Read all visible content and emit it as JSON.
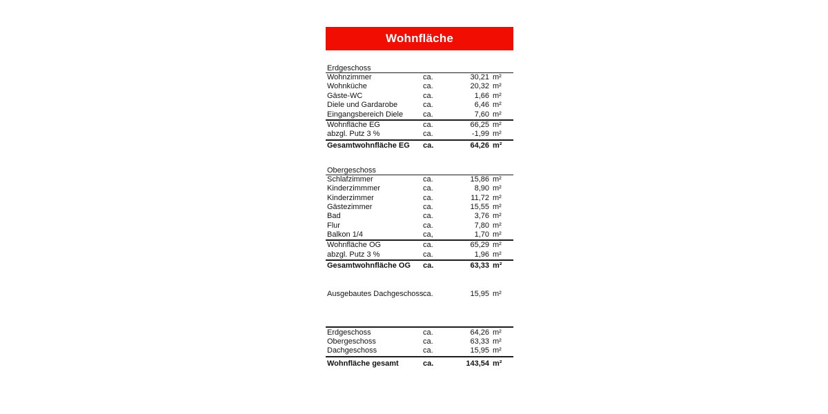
{
  "title": "Wohnfläche",
  "colors": {
    "banner_red": "#f20d02",
    "banner_text": "#ffffff",
    "text": "#111111",
    "rule": "#1c1c1c",
    "page_bg": "#ffffff"
  },
  "sections": {
    "eg": {
      "header": "Erdgeschoss",
      "rows": [
        {
          "label": "Wohnzimmer",
          "ca": "ca.",
          "value": "30,21",
          "unit": "m²"
        },
        {
          "label": "Wohnküche",
          "ca": "ca.",
          "value": "20,32",
          "unit": "m²"
        },
        {
          "label": "Gäste-WC",
          "ca": "ca.",
          "value": "1,66",
          "unit": "m²"
        },
        {
          "label": "Diele und Gardarobe",
          "ca": "ca.",
          "value": "6,46",
          "unit": "m²"
        },
        {
          "label": "Eingangsbereich Diele",
          "ca": "ca.",
          "value": "7,60",
          "unit": "m²"
        }
      ],
      "subtotal_rows": [
        {
          "label": "Wohnfläche EG",
          "ca": "ca.",
          "value": "66,25",
          "unit": "m²"
        },
        {
          "label": "abzgl. Putz 3 %",
          "ca": "ca.",
          "value": "-1,99",
          "unit": "m²"
        }
      ],
      "total_row": {
        "label": "Gesamtwohnfläche EG",
        "ca": "ca.",
        "value": "64,26",
        "unit": "m²"
      }
    },
    "og": {
      "header": "Obergeschoss",
      "rows": [
        {
          "label": "Schlafzimmer",
          "ca": "ca.",
          "value": "15,86",
          "unit": "m²"
        },
        {
          "label": "Kinderzimmmer",
          "ca": "ca.",
          "value": "8,90",
          "unit": "m²"
        },
        {
          "label": "Kinderzimmer",
          "ca": "ca.",
          "value": "11,72",
          "unit": "m²"
        },
        {
          "label": "Gästezimmer",
          "ca": "ca.",
          "value": "15,55",
          "unit": "m²"
        },
        {
          "label": "Bad",
          "ca": "ca.",
          "value": "3,76",
          "unit": "m²"
        },
        {
          "label": "Flur",
          "ca": "ca.",
          "value": "7,80",
          "unit": "m²"
        },
        {
          "label": "Balkon 1/4",
          "ca": "ca,",
          "value": "1,70",
          "unit": "m²"
        }
      ],
      "subtotal_rows": [
        {
          "label": "Wohnfläche OG",
          "ca": "ca.",
          "value": "65,29",
          "unit": "m²"
        },
        {
          "label": "abzgl. Putz 3 %",
          "ca": "ca.",
          "value": "1,96",
          "unit": "m²"
        }
      ],
      "total_row": {
        "label": "Gesamtwohnfläche OG",
        "ca": "ca.",
        "value": "63,33",
        "unit": "m²"
      }
    },
    "dach": {
      "row": {
        "label": "Ausgebautes Dachgeschoss",
        "ca": "ca.",
        "value": "15,95",
        "unit": "m²"
      }
    },
    "summary": {
      "rows": [
        {
          "label": "Erdgeschoss",
          "ca": "ca.",
          "value": "64,26",
          "unit": "m²"
        },
        {
          "label": "Obergeschoss",
          "ca": "ca.",
          "value": "63,33",
          "unit": "m²"
        },
        {
          "label": "Dachgeschoss",
          "ca": "ca.",
          "value": "15,95",
          "unit": "m²"
        }
      ],
      "total_row": {
        "label": "Wohnfläche gesamt",
        "ca": "ca.",
        "value": "143,54",
        "unit": "m²"
      }
    }
  }
}
